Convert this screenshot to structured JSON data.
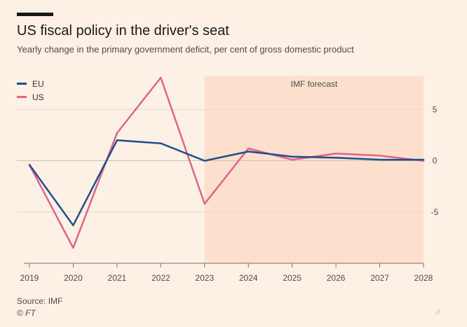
{
  "header": {
    "title": "US fiscal policy in the driver's seat",
    "subtitle": "Yearly change in the primary government deficit, per cent of gross domestic product"
  },
  "footer": {
    "source": "Source: IMF",
    "copyright": "© FT"
  },
  "chart_data": {
    "type": "line",
    "x": [
      2019,
      2020,
      2021,
      2022,
      2023,
      2024,
      2025,
      2026,
      2027,
      2028
    ],
    "x_tick_labels": [
      "2019",
      "2020",
      "2021",
      "2022",
      "2023",
      "2024",
      "2025",
      "2026",
      "2027",
      "2028"
    ],
    "y_ticks": [
      5,
      0,
      -5
    ],
    "y_tick_labels": [
      "5",
      "0",
      "-5"
    ],
    "ylim": [
      -10,
      8.3
    ],
    "y_axis_position": "right",
    "grid": true,
    "legend_position": "top-left",
    "shaded_region": {
      "label": "IMF forecast",
      "x_start": 2023,
      "x_end": 2028,
      "color": "#fce0cd"
    },
    "series": [
      {
        "name": "EU",
        "color": "#1f4e8c",
        "values": [
          -0.4,
          -6.3,
          2.0,
          1.7,
          0.0,
          0.9,
          0.4,
          0.3,
          0.1,
          0.1
        ]
      },
      {
        "name": "US",
        "color": "#e0648c",
        "values": [
          -0.4,
          -8.5,
          2.7,
          8.1,
          -4.2,
          1.2,
          0.1,
          0.7,
          0.5,
          0.0
        ]
      }
    ]
  }
}
